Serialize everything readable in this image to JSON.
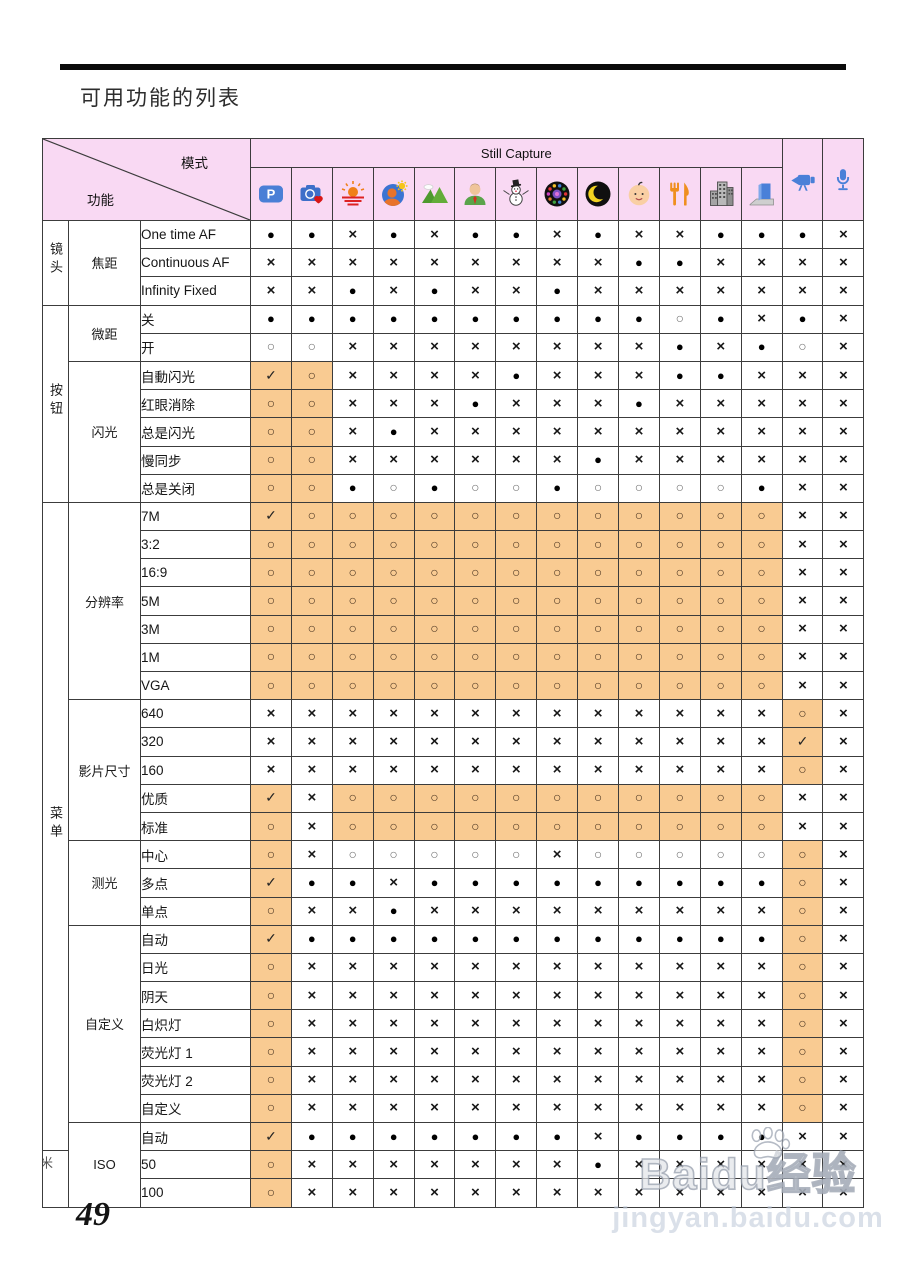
{
  "page": {
    "title": "可用功能的列表",
    "page_number": "49"
  },
  "colors": {
    "header_pink": "#f9d9f3",
    "shade_orange": "#f9cb92",
    "border": "#3c3c3c"
  },
  "watermark": {
    "brand": "Baidu",
    "brand_suffix": "经验",
    "url": "jingyan.baidu.com"
  },
  "table": {
    "corner": {
      "top": "模式",
      "bottom": "功能"
    },
    "still_capture_label": "Still Capture",
    "mode_icons": [
      {
        "name": "p-mode-icon"
      },
      {
        "name": "camera-heart-icon"
      },
      {
        "name": "sunset-icon"
      },
      {
        "name": "backlight-portrait-icon"
      },
      {
        "name": "landscape-icon"
      },
      {
        "name": "portrait-icon"
      },
      {
        "name": "snow-icon"
      },
      {
        "name": "fireworks-icon"
      },
      {
        "name": "night-icon"
      },
      {
        "name": "baby-icon"
      },
      {
        "name": "food-icon"
      },
      {
        "name": "building-icon"
      },
      {
        "name": "text-icon"
      }
    ],
    "extra_icons": [
      {
        "name": "video-icon"
      },
      {
        "name": "voice-icon"
      }
    ],
    "groups": [
      {
        "label": "镜头",
        "row_count": 3
      },
      {
        "label": "按钮",
        "row_count": 7
      },
      {
        "label": "菜单",
        "row_count": 23
      },
      {
        "label": "米",
        "row_count": 2,
        "partial": true
      }
    ],
    "subgroups": [
      {
        "label": "焦距",
        "row_count": 3
      },
      {
        "label": "微距",
        "row_count": 2
      },
      {
        "label": "闪光",
        "row_count": 5
      },
      {
        "label": "分辨率",
        "row_count": 7
      },
      {
        "label": "影片尺寸",
        "row_count": 5
      },
      {
        "label": "测光",
        "row_count": 3
      },
      {
        "label": "自定义",
        "row_count": 7
      },
      {
        "label": "ISO",
        "row_count": 3
      }
    ],
    "rows": [
      {
        "label": "One time AF",
        "cells": [
          "●",
          "●",
          "×",
          "●",
          "×",
          "●",
          "●",
          "×",
          "●",
          "×",
          "×",
          "●",
          "●",
          "●",
          "×"
        ]
      },
      {
        "label": "Continuous AF",
        "cells": [
          "×",
          "×",
          "×",
          "×",
          "×",
          "×",
          "×",
          "×",
          "×",
          "●",
          "●",
          "×",
          "×",
          "×",
          "×"
        ]
      },
      {
        "label": "Infinity Fixed",
        "cells": [
          "×",
          "×",
          "●",
          "×",
          "●",
          "×",
          "×",
          "●",
          "×",
          "×",
          "×",
          "×",
          "×",
          "×",
          "×"
        ]
      },
      {
        "label": "关",
        "cells": [
          "●",
          "●",
          "●",
          "●",
          "●",
          "●",
          "●",
          "●",
          "●",
          "●",
          "○",
          "●",
          "×",
          "●",
          "×"
        ]
      },
      {
        "label": "开",
        "cells": [
          "○",
          "○",
          "×",
          "×",
          "×",
          "×",
          "×",
          "×",
          "×",
          "×",
          "●",
          "×",
          "●",
          "○",
          "×"
        ]
      },
      {
        "label": "自動闪光",
        "cells": [
          "✓!",
          "○!",
          "×",
          "×",
          "×",
          "×",
          "●",
          "×",
          "×",
          "×",
          "●",
          "●",
          "×",
          "×",
          "×"
        ]
      },
      {
        "label": "红眼消除",
        "cells": [
          "○!",
          "○!",
          "×",
          "×",
          "×",
          "●",
          "×",
          "×",
          "×",
          "●",
          "×",
          "×",
          "×",
          "×",
          "×"
        ]
      },
      {
        "label": "总是闪光",
        "cells": [
          "○!",
          "○!",
          "×",
          "●",
          "×",
          "×",
          "×",
          "×",
          "×",
          "×",
          "×",
          "×",
          "×",
          "×",
          "×"
        ]
      },
      {
        "label": "慢同步",
        "cells": [
          "○!",
          "○!",
          "×",
          "×",
          "×",
          "×",
          "×",
          "×",
          "●",
          "×",
          "×",
          "×",
          "×",
          "×",
          "×"
        ]
      },
      {
        "label": "总是关闭",
        "cells": [
          "○!",
          "○!",
          "●",
          "○",
          "●",
          "○",
          "○",
          "●",
          "○",
          "○",
          "○",
          "○",
          "●",
          "×",
          "×"
        ]
      },
      {
        "label": "7M",
        "cells": [
          "✓!",
          "○!",
          "○!",
          "○!",
          "○!",
          "○!",
          "○!",
          "○!",
          "○!",
          "○!",
          "○!",
          "○!",
          "○!",
          "×",
          "×"
        ]
      },
      {
        "label": "3:2",
        "cells": [
          "○!",
          "○!",
          "○!",
          "○!",
          "○!",
          "○!",
          "○!",
          "○!",
          "○!",
          "○!",
          "○!",
          "○!",
          "○!",
          "×",
          "×"
        ]
      },
      {
        "label": "16:9",
        "cells": [
          "○!",
          "○!",
          "○!",
          "○!",
          "○!",
          "○!",
          "○!",
          "○!",
          "○!",
          "○!",
          "○!",
          "○!",
          "○!",
          "×",
          "×"
        ]
      },
      {
        "label": "5M",
        "cells": [
          "○!",
          "○!",
          "○!",
          "○!",
          "○!",
          "○!",
          "○!",
          "○!",
          "○!",
          "○!",
          "○!",
          "○!",
          "○!",
          "×",
          "×"
        ]
      },
      {
        "label": "3M",
        "cells": [
          "○!",
          "○!",
          "○!",
          "○!",
          "○!",
          "○!",
          "○!",
          "○!",
          "○!",
          "○!",
          "○!",
          "○!",
          "○!",
          "×",
          "×"
        ]
      },
      {
        "label": "1M",
        "cells": [
          "○!",
          "○!",
          "○!",
          "○!",
          "○!",
          "○!",
          "○!",
          "○!",
          "○!",
          "○!",
          "○!",
          "○!",
          "○!",
          "×",
          "×"
        ]
      },
      {
        "label": "VGA",
        "cells": [
          "○!",
          "○!",
          "○!",
          "○!",
          "○!",
          "○!",
          "○!",
          "○!",
          "○!",
          "○!",
          "○!",
          "○!",
          "○!",
          "×",
          "×"
        ]
      },
      {
        "label": "640",
        "cells": [
          "×",
          "×",
          "×",
          "×",
          "×",
          "×",
          "×",
          "×",
          "×",
          "×",
          "×",
          "×",
          "×",
          "○!",
          "×"
        ]
      },
      {
        "label": "320",
        "cells": [
          "×",
          "×",
          "×",
          "×",
          "×",
          "×",
          "×",
          "×",
          "×",
          "×",
          "×",
          "×",
          "×",
          "✓!",
          "×"
        ]
      },
      {
        "label": "160",
        "cells": [
          "×",
          "×",
          "×",
          "×",
          "×",
          "×",
          "×",
          "×",
          "×",
          "×",
          "×",
          "×",
          "×",
          "○!",
          "×"
        ]
      },
      {
        "label": "优质",
        "cells": [
          "✓!",
          "×",
          "○!",
          "○!",
          "○!",
          "○!",
          "○!",
          "○!",
          "○!",
          "○!",
          "○!",
          "○!",
          "○!",
          "×",
          "×"
        ]
      },
      {
        "label": "标准",
        "cells": [
          "○!",
          "×",
          "○!",
          "○!",
          "○!",
          "○!",
          "○!",
          "○!",
          "○!",
          "○!",
          "○!",
          "○!",
          "○!",
          "×",
          "×"
        ]
      },
      {
        "label": "中心",
        "cells": [
          "○!",
          "×",
          "○",
          "○",
          "○",
          "○",
          "○",
          "×",
          "○",
          "○",
          "○",
          "○",
          "○",
          "○!",
          "×"
        ]
      },
      {
        "label": "多点",
        "cells": [
          "✓!",
          "●",
          "●",
          "×",
          "●",
          "●",
          "●",
          "●",
          "●",
          "●",
          "●",
          "●",
          "●",
          "○!",
          "×"
        ]
      },
      {
        "label": "单点",
        "cells": [
          "○!",
          "×",
          "×",
          "●",
          "×",
          "×",
          "×",
          "×",
          "×",
          "×",
          "×",
          "×",
          "×",
          "○!",
          "×"
        ]
      },
      {
        "label": "自动",
        "cells": [
          "✓!",
          "●",
          "●",
          "●",
          "●",
          "●",
          "●",
          "●",
          "●",
          "●",
          "●",
          "●",
          "●",
          "○!",
          "×"
        ]
      },
      {
        "label": "日光",
        "cells": [
          "○!",
          "×",
          "×",
          "×",
          "×",
          "×",
          "×",
          "×",
          "×",
          "×",
          "×",
          "×",
          "×",
          "○!",
          "×"
        ]
      },
      {
        "label": "阴天",
        "cells": [
          "○!",
          "×",
          "×",
          "×",
          "×",
          "×",
          "×",
          "×",
          "×",
          "×",
          "×",
          "×",
          "×",
          "○!",
          "×"
        ]
      },
      {
        "label": "白炽灯",
        "cells": [
          "○!",
          "×",
          "×",
          "×",
          "×",
          "×",
          "×",
          "×",
          "×",
          "×",
          "×",
          "×",
          "×",
          "○!",
          "×"
        ]
      },
      {
        "label": "荧光灯 1",
        "cells": [
          "○!",
          "×",
          "×",
          "×",
          "×",
          "×",
          "×",
          "×",
          "×",
          "×",
          "×",
          "×",
          "×",
          "○!",
          "×"
        ]
      },
      {
        "label": "荧光灯 2",
        "cells": [
          "○!",
          "×",
          "×",
          "×",
          "×",
          "×",
          "×",
          "×",
          "×",
          "×",
          "×",
          "×",
          "×",
          "○!",
          "×"
        ]
      },
      {
        "label": "自定义",
        "cells": [
          "○!",
          "×",
          "×",
          "×",
          "×",
          "×",
          "×",
          "×",
          "×",
          "×",
          "×",
          "×",
          "×",
          "○!",
          "×"
        ]
      },
      {
        "label": "自动",
        "cells": [
          "✓!",
          "●",
          "●",
          "●",
          "●",
          "●",
          "●",
          "●",
          "×",
          "●",
          "●",
          "●",
          "●",
          "×",
          "×"
        ]
      },
      {
        "label": "50",
        "cells": [
          "○!",
          "×",
          "×",
          "×",
          "×",
          "×",
          "×",
          "×",
          "●",
          "×",
          "×",
          "×",
          "×",
          "×",
          "×"
        ]
      },
      {
        "label": "100",
        "cells": [
          "○!",
          "×",
          "×",
          "×",
          "×",
          "×",
          "×",
          "×",
          "×",
          "×",
          "×",
          "×",
          "×",
          "×",
          "×"
        ]
      }
    ]
  }
}
